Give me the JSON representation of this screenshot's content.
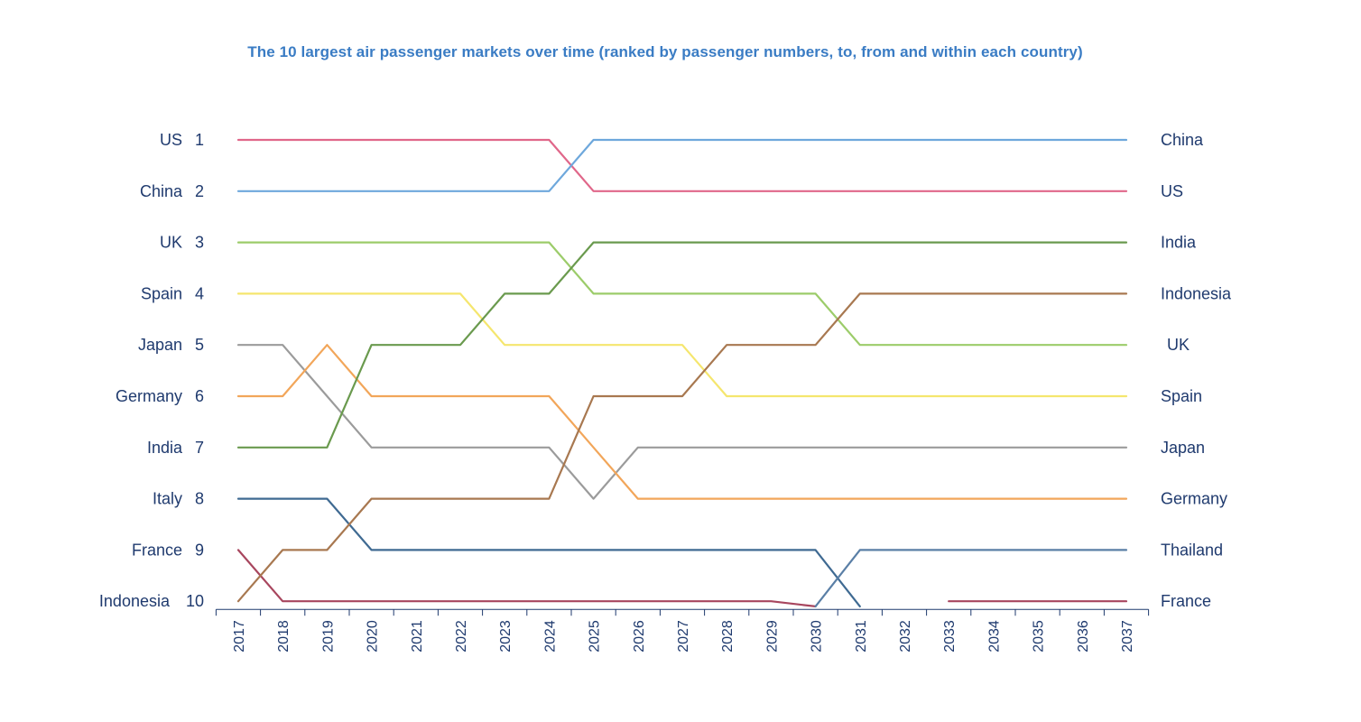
{
  "chart_data": {
    "type": "line",
    "title": "The 10 largest air passenger markets over time (ranked by passenger numbers, to, from and within each country)",
    "x": [
      "2017",
      "2018",
      "2019",
      "2020",
      "2021",
      "2022",
      "2023",
      "2024",
      "2025",
      "2026",
      "2027",
      "2028",
      "2029",
      "2030",
      "2031",
      "2032",
      "2033",
      "2034",
      "2035",
      "2036",
      "2037"
    ],
    "ylim": [
      1,
      10
    ],
    "y_inverted": true,
    "left_labels": [
      {
        "name": "US",
        "rank": "1"
      },
      {
        "name": "China",
        "rank": "2"
      },
      {
        "name": "UK",
        "rank": "3"
      },
      {
        "name": "Spain",
        "rank": "4"
      },
      {
        "name": "Japan",
        "rank": "5"
      },
      {
        "name": "Germany",
        "rank": "6"
      },
      {
        "name": "India",
        "rank": "7"
      },
      {
        "name": "Italy",
        "rank": "8"
      },
      {
        "name": "France",
        "rank": "9"
      },
      {
        "name": "Indonesia",
        "rank": "10"
      }
    ],
    "right_labels": [
      "China",
      "US",
      "India",
      "Indonesia",
      "UK",
      "Spain",
      "Japan",
      "Germany",
      "Thailand",
      "France"
    ],
    "series": [
      {
        "name": "US",
        "color": "#e0678a",
        "values": [
          1,
          1,
          1,
          1,
          1,
          1,
          1,
          1,
          2,
          2,
          2,
          2,
          2,
          2,
          2,
          2,
          2,
          2,
          2,
          2,
          2
        ]
      },
      {
        "name": "China",
        "color": "#6ea8dc",
        "values": [
          2,
          2,
          2,
          2,
          2,
          2,
          2,
          2,
          1,
          1,
          1,
          1,
          1,
          1,
          1,
          1,
          1,
          1,
          1,
          1,
          1
        ]
      },
      {
        "name": "UK",
        "color": "#9ccc6a",
        "values": [
          3,
          3,
          3,
          3,
          3,
          3,
          3,
          3,
          4,
          4,
          4,
          4,
          4,
          4,
          5,
          5,
          5,
          5,
          5,
          5,
          5
        ]
      },
      {
        "name": "Spain",
        "color": "#f5e66e",
        "values": [
          4,
          4,
          4,
          4,
          4,
          4,
          5,
          5,
          5,
          5,
          5,
          6,
          6,
          6,
          6,
          6,
          6,
          6,
          6,
          6,
          6
        ]
      },
      {
        "name": "Japan",
        "color": "#9b9b9b",
        "values": [
          5,
          5,
          6,
          7,
          7,
          7,
          7,
          7,
          8,
          7,
          7,
          7,
          7,
          7,
          7,
          7,
          7,
          7,
          7,
          7,
          7
        ]
      },
      {
        "name": "Germany",
        "color": "#f2a65a",
        "values": [
          6,
          6,
          5,
          6,
          6,
          6,
          6,
          6,
          7,
          8,
          8,
          8,
          8,
          8,
          8,
          8,
          8,
          8,
          8,
          8,
          8
        ]
      },
      {
        "name": "India",
        "color": "#6a9a4e",
        "values": [
          7,
          7,
          7,
          5,
          5,
          5,
          4,
          4,
          3,
          3,
          3,
          3,
          3,
          3,
          3,
          3,
          3,
          3,
          3,
          3,
          3
        ]
      },
      {
        "name": "Italy",
        "color": "#3f6a92",
        "values": [
          8,
          8,
          8,
          9,
          9,
          9,
          9,
          9,
          9,
          9,
          9,
          9,
          9,
          9,
          10.1,
          null,
          null,
          null,
          null,
          null,
          null
        ]
      },
      {
        "name": "France",
        "color": "#a8465e",
        "values": [
          9,
          10,
          10,
          10,
          10,
          10,
          10,
          10,
          10,
          10,
          10,
          10,
          10,
          10.1,
          null,
          null,
          10,
          10,
          10,
          10,
          10
        ]
      },
      {
        "name": "Indonesia",
        "color": "#a87850",
        "values": [
          10,
          9,
          9,
          8,
          8,
          8,
          8,
          8,
          6,
          6,
          6,
          5,
          5,
          5,
          4,
          4,
          4,
          4,
          4,
          4,
          4
        ]
      },
      {
        "name": "Thailand",
        "color": "#5a7fa6",
        "values": [
          null,
          null,
          null,
          null,
          null,
          null,
          null,
          null,
          null,
          null,
          null,
          null,
          null,
          10.1,
          9,
          9,
          9,
          9,
          9,
          9,
          9
        ]
      }
    ]
  }
}
